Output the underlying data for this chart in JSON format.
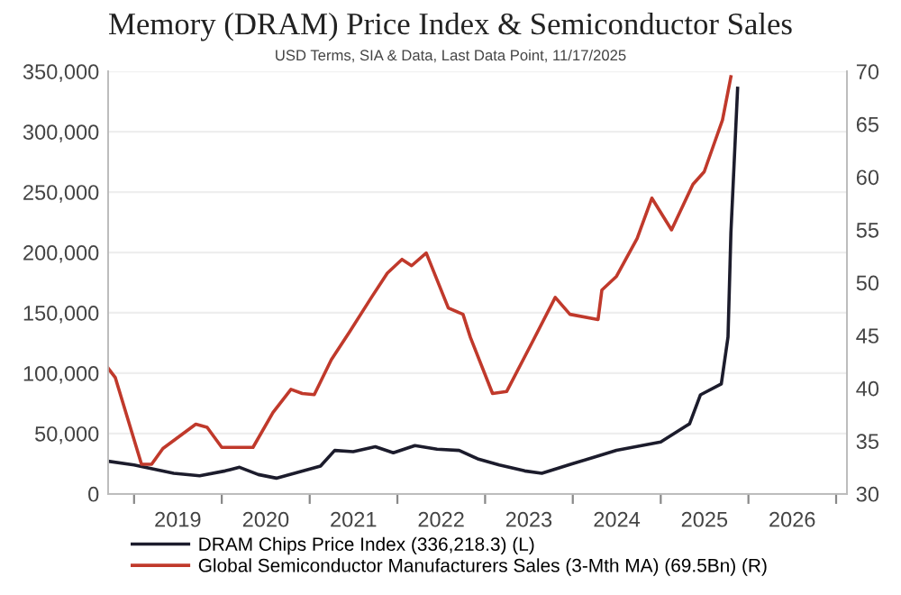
{
  "chart_data": {
    "type": "line",
    "title": "Memory (DRAM) Price Index & Semiconductor Sales",
    "subtitle": "USD Terms, SIA & Data, Last Data Point, 11/17/2025",
    "series": [
      {
        "name": "DRAM Chips Price Index (336,218.3) (L)",
        "color": "#1c1c2c",
        "x": [
          "2018-09-15",
          "2019-01-01",
          "2019-06-15",
          "2019-10-01",
          "2020-01-15",
          "2020-03-15",
          "2020-06-01",
          "2020-08-15",
          "2020-11-15",
          "2021-02-15",
          "2021-04-15",
          "2021-07-01",
          "2021-10-01",
          "2021-12-15",
          "2022-03-15",
          "2022-06-15",
          "2022-09-15",
          "2022-12-01",
          "2023-03-01",
          "2023-06-15",
          "2023-08-25",
          "2024-01-01",
          "2024-07-01",
          "2025-01-01",
          "2025-05-01",
          "2025-06-15",
          "2025-09-10",
          "2025-10-08",
          "2025-10-20",
          "2025-11-17"
        ],
        "values": [
          27000,
          24000,
          17000,
          15000,
          19000,
          22000,
          16000,
          13000,
          18000,
          23000,
          36000,
          35000,
          39000,
          34000,
          40000,
          37000,
          36000,
          29000,
          24000,
          19000,
          17000,
          25000,
          36000,
          43000,
          58000,
          82000,
          91000,
          130000,
          216000,
          336000
        ]
      },
      {
        "name": "Global Semiconductor Manufacturers Sales (3-Mth MA) (69.5Bn) (R)",
        "color": "#c0392b",
        "axis": "y2",
        "x": [
          "2018-09-15",
          "2018-10-15",
          "2019-02-01",
          "2019-03-15",
          "2019-05-01",
          "2019-09-15",
          "2019-11-01",
          "2020-01-01",
          "2020-03-01",
          "2020-05-10",
          "2020-08-01",
          "2020-10-15",
          "2020-12-01",
          "2021-01-20",
          "2021-04-01",
          "2021-06-15",
          "2021-09-15",
          "2021-11-20",
          "2022-01-20",
          "2022-03-01",
          "2022-05-01",
          "2022-08-01",
          "2022-10-01",
          "2022-11-01",
          "2023-02-01",
          "2023-04-01",
          "2023-07-15",
          "2023-10-20",
          "2023-12-20",
          "2024-04-15",
          "2024-05-01",
          "2024-07-01",
          "2024-09-25",
          "2024-11-25",
          "2025-02-15",
          "2025-05-15",
          "2025-07-01",
          "2025-08-15",
          "2025-09-15",
          "2025-10-20"
        ],
        "values": [
          41.9,
          41.0,
          32.8,
          32.8,
          34.3,
          36.6,
          36.3,
          34.4,
          34.4,
          34.4,
          37.7,
          39.9,
          39.5,
          39.4,
          42.7,
          45.3,
          48.6,
          50.9,
          52.2,
          51.6,
          52.8,
          47.6,
          47.0,
          44.8,
          39.5,
          39.7,
          44.3,
          48.6,
          47.0,
          46.5,
          49.3,
          50.6,
          54.2,
          58.0,
          55.0,
          59.3,
          60.5,
          63.4,
          65.4,
          69.5
        ]
      }
    ],
    "xlim": [
      "2018-09-15",
      "2027-02-15"
    ],
    "xticks": [
      {
        "value": "2019-01-01",
        "label": null
      },
      {
        "value": "2019-07-02",
        "label": "2019"
      },
      {
        "value": "2020-01-01",
        "label": null
      },
      {
        "value": "2020-07-02",
        "label": "2020"
      },
      {
        "value": "2021-01-01",
        "label": null
      },
      {
        "value": "2021-07-02",
        "label": "2021"
      },
      {
        "value": "2022-01-01",
        "label": null
      },
      {
        "value": "2022-07-02",
        "label": "2022"
      },
      {
        "value": "2023-01-01",
        "label": null
      },
      {
        "value": "2023-07-02",
        "label": "2023"
      },
      {
        "value": "2024-01-01",
        "label": null
      },
      {
        "value": "2024-07-02",
        "label": "2024"
      },
      {
        "value": "2025-01-01",
        "label": null
      },
      {
        "value": "2025-07-02",
        "label": "2025"
      },
      {
        "value": "2026-01-01",
        "label": null
      },
      {
        "value": "2026-07-02",
        "label": "2026"
      },
      {
        "value": "2027-01-01",
        "label": null
      }
    ],
    "ylim": [
      0,
      350000
    ],
    "yticks": [
      {
        "value": 0,
        "label": "0"
      },
      {
        "value": 50000,
        "label": "50,000"
      },
      {
        "value": 100000,
        "label": "100,000"
      },
      {
        "value": 150000,
        "label": "150,000"
      },
      {
        "value": 200000,
        "label": "200,000"
      },
      {
        "value": 250000,
        "label": "250,000"
      },
      {
        "value": 300000,
        "label": "300,000"
      },
      {
        "value": 350000,
        "label": "350,000"
      }
    ],
    "y2lim": [
      30,
      70
    ],
    "y2ticks": [
      30,
      35,
      40,
      45,
      50,
      55,
      60,
      65,
      70
    ],
    "grid": "y",
    "legend": "bottom",
    "line_style": "solid",
    "marker": "none"
  }
}
